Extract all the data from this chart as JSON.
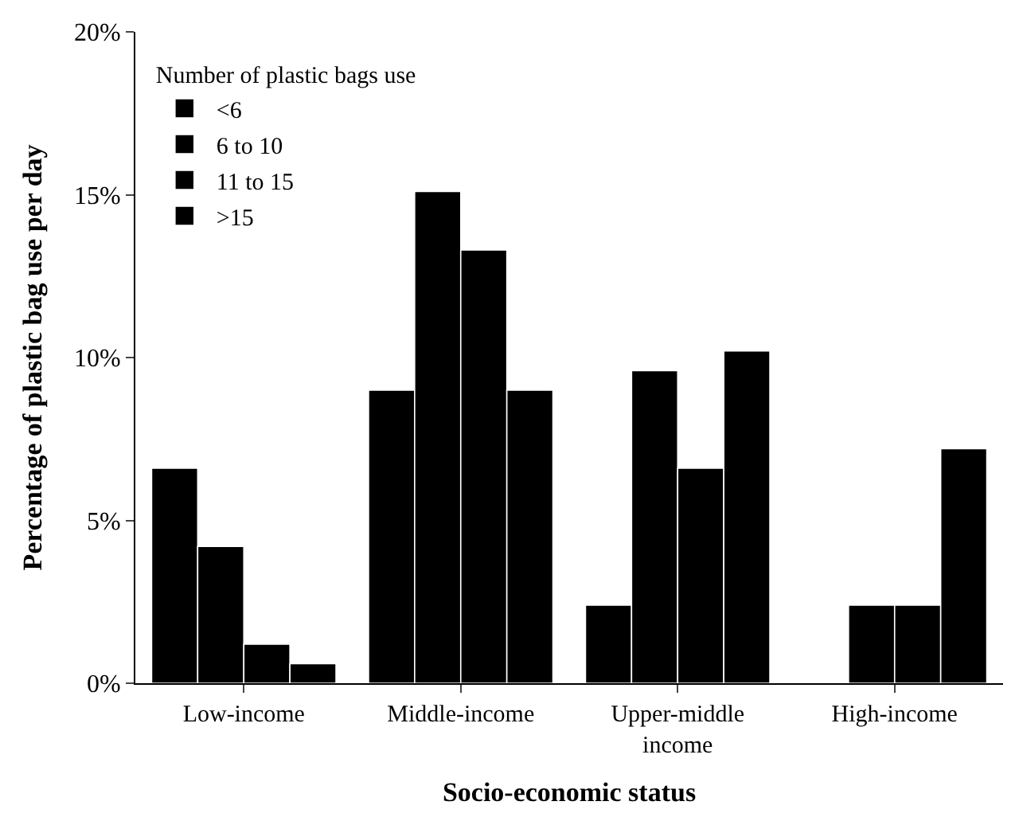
{
  "chart_data": {
    "type": "bar",
    "xlabel": "Socio-economic status",
    "ylabel": "Percentage of plastic bag use per day",
    "legend_title": "Number of plastic bags use",
    "legend": "top left",
    "categories": [
      "Low-income",
      "Middle-income",
      "Upper-middle income",
      "High-income"
    ],
    "series": [
      {
        "name": "<6",
        "color": "#000000",
        "values": [
          6.6,
          9.0,
          2.4,
          0
        ]
      },
      {
        "name": "6 to 10",
        "color": "#000000",
        "values": [
          4.2,
          15.1,
          9.6,
          2.4
        ]
      },
      {
        "name": "11 to 15",
        "color": "#000000",
        "values": [
          1.2,
          13.3,
          6.6,
          2.4
        ]
      },
      {
        "name": ">15",
        "color": "#000000",
        "values": [
          0.6,
          9.0,
          10.2,
          7.2
        ]
      }
    ],
    "ylim": [
      0,
      20
    ],
    "yticks": [
      {
        "value": 0,
        "label": "0%"
      },
      {
        "value": 5,
        "label": "5%"
      },
      {
        "value": 10,
        "label": "10%"
      },
      {
        "value": 15,
        "label": "15%"
      },
      {
        "value": 20,
        "label": "20%"
      }
    ]
  }
}
